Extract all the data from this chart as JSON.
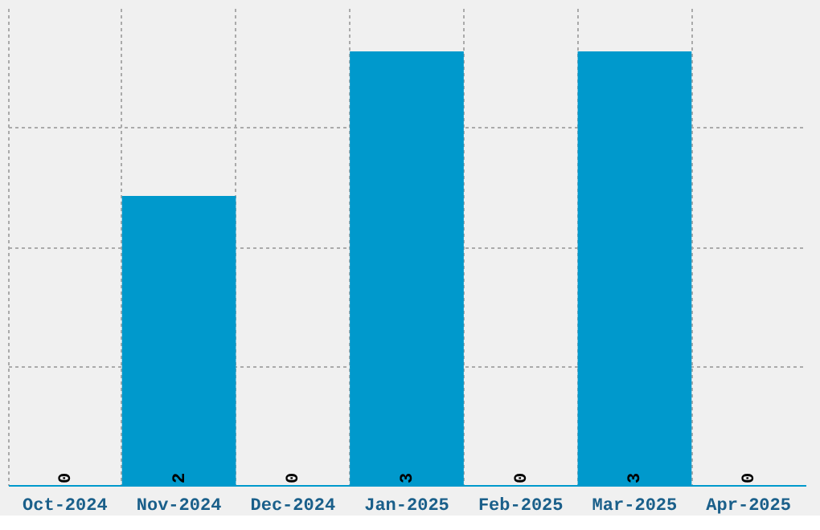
{
  "chart_data": {
    "type": "bar",
    "categories": [
      "Oct-2024",
      "Nov-2024",
      "Dec-2024",
      "Jan-2025",
      "Feb-2025",
      "Mar-2025",
      "Apr-2025"
    ],
    "values": [
      0,
      2,
      0,
      3,
      0,
      3,
      0
    ],
    "color": "#0099cc",
    "data_labels": true,
    "grid": true,
    "tick_labels": "x",
    "ylim": [
      0,
      3.3
    ],
    "yticks": [
      {
        "value": 0.825,
        "label": null
      },
      {
        "value": 1.65,
        "label": null
      },
      {
        "value": 2.475,
        "label": null
      }
    ]
  }
}
